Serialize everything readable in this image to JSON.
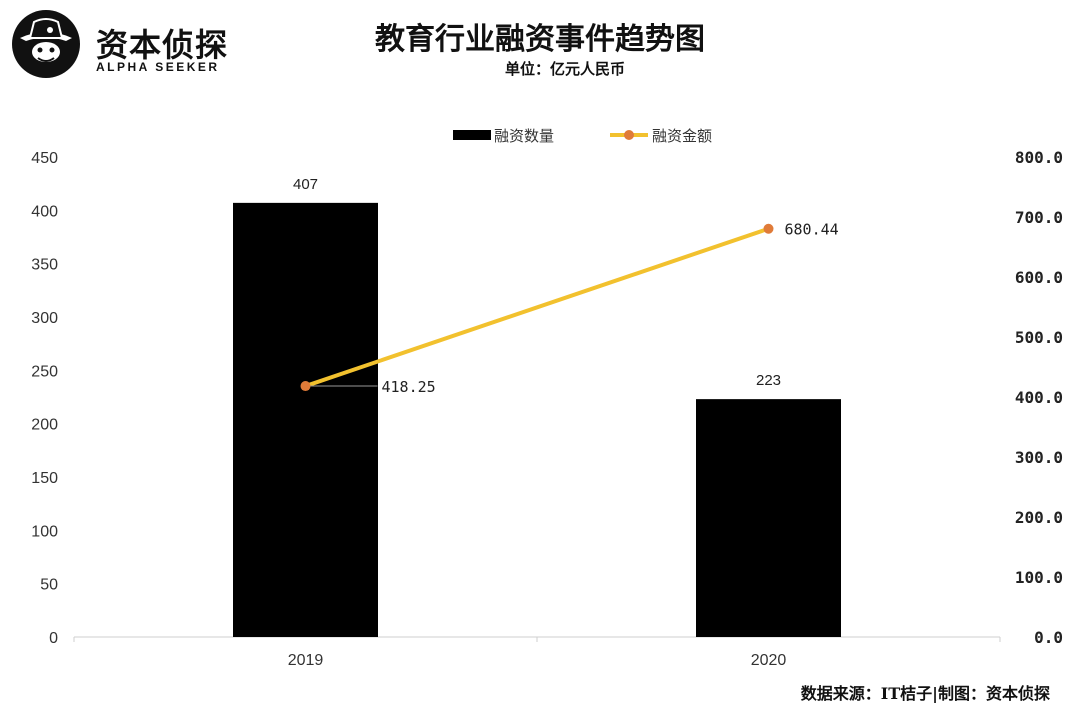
{
  "branding": {
    "logo_text": "资本侦探",
    "logo_subtext": "ALPHA SEEKER"
  },
  "header": {
    "title": "教育行业融资事件趋势图",
    "subtitle": "单位：亿元人民币"
  },
  "footer": {
    "source": "数据来源：IT桔子|制图：资本侦探"
  },
  "colors": {
    "bar": "#000000",
    "line": "#F2C12E",
    "marker": "#E07B39",
    "axis": "#cfcfcf"
  },
  "chart_data": {
    "type": "bar",
    "categories": [
      "2019",
      "2020"
    ],
    "series": [
      {
        "name": "融资数量",
        "type": "bar",
        "axis": "left",
        "values": [
          407,
          223
        ],
        "labels": [
          "407",
          "223"
        ]
      },
      {
        "name": "融资金额",
        "type": "line",
        "axis": "right",
        "values": [
          418.25,
          680.44
        ],
        "labels": [
          "418.25",
          "680.44"
        ]
      }
    ],
    "y_left": {
      "ylim": [
        0,
        450
      ],
      "ticks": [
        "0",
        "50",
        "100",
        "150",
        "200",
        "250",
        "300",
        "350",
        "400",
        "450"
      ]
    },
    "y_right": {
      "ylim": [
        0,
        800
      ],
      "ticks": [
        "0.0",
        "100.0",
        "200.0",
        "300.0",
        "400.0",
        "500.0",
        "600.0",
        "700.0",
        "800.0"
      ]
    },
    "legend_position": "top-center",
    "grid": false
  }
}
